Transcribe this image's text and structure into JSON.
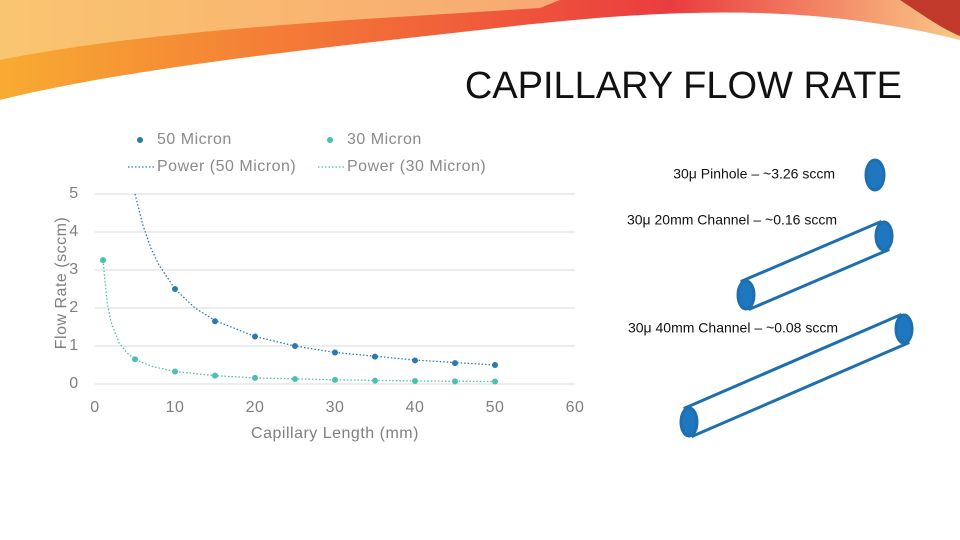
{
  "chart_data": {
    "type": "scatter",
    "title": "CAPILLARY FLOW RATE",
    "x_label": "Capillary Length (mm)",
    "y_label": "Flow Rate (sccm)",
    "xlim": [
      0,
      60
    ],
    "xticks": [
      0,
      10,
      20,
      30,
      40,
      50,
      60
    ],
    "ylim": [
      0,
      5
    ],
    "yticks": [
      0,
      1,
      2,
      3,
      4,
      5
    ],
    "grid": true,
    "series": [
      {
        "name": "50 Micron",
        "color": "#2a7ab0",
        "mode": "markers",
        "x": [
          10,
          15,
          20,
          25,
          30,
          35,
          40,
          45,
          50
        ],
        "values": [
          2.5,
          1.65,
          1.25,
          1.0,
          0.83,
          0.72,
          0.62,
          0.55,
          0.5
        ]
      },
      {
        "name": "30 Micron",
        "color": "#4cc0b0",
        "mode": "markers",
        "x": [
          1,
          5,
          10,
          15,
          20,
          25,
          30,
          35,
          40,
          45,
          50
        ],
        "values": [
          3.26,
          0.65,
          0.33,
          0.22,
          0.16,
          0.13,
          0.11,
          0.09,
          0.08,
          0.07,
          0.065
        ]
      },
      {
        "name": "Power (50 Micron)",
        "color": "#2a7ab0",
        "mode": "dotted",
        "x": [
          5,
          6,
          7,
          8,
          10,
          12.5,
          15,
          20,
          25,
          30,
          40,
          50
        ],
        "values": [
          5,
          4.17,
          3.57,
          3.13,
          2.5,
          2,
          1.67,
          1.25,
          1,
          0.83,
          0.63,
          0.5
        ]
      },
      {
        "name": "Power (30 Micron)",
        "color": "#4cc0b0",
        "mode": "dotted",
        "x": [
          1,
          1.5,
          2,
          3,
          4,
          5,
          7,
          10,
          15,
          20,
          30,
          40,
          50
        ],
        "values": [
          3.26,
          2.17,
          1.63,
          1.09,
          0.82,
          0.65,
          0.47,
          0.33,
          0.22,
          0.16,
          0.11,
          0.08,
          0.065
        ]
      }
    ],
    "annotations": [
      "30μ Pinhole – ~3.26 sccm",
      "30μ 20mm Channel  – ~0.16 sccm",
      "30μ 40mm Channel  – ~0.08 sccm"
    ]
  }
}
